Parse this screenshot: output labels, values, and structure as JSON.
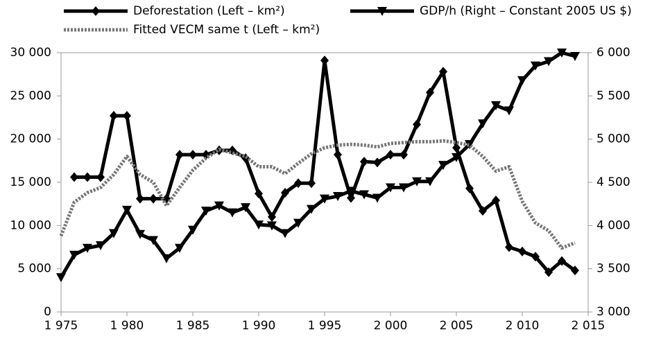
{
  "chart_data": {
    "type": "line",
    "x": [
      1975,
      1976,
      1977,
      1978,
      1979,
      1980,
      1981,
      1982,
      1983,
      1984,
      1985,
      1986,
      1987,
      1988,
      1989,
      1990,
      1991,
      1992,
      1993,
      1994,
      1995,
      1996,
      1997,
      1998,
      1999,
      2000,
      2001,
      2002,
      2003,
      2004,
      2005,
      2006,
      2007,
      2008,
      2009,
      2010,
      2011,
      2012,
      2013,
      2014
    ],
    "series": [
      {
        "name": "Deforestation (Left – km²)",
        "color": "#000000",
        "line_style": "solid",
        "marker": "diamond",
        "values": [
          null,
          15600,
          15600,
          15600,
          22700,
          22700,
          13100,
          13100,
          13100,
          18200,
          18200,
          18200,
          18700,
          18700,
          17800,
          13700,
          11000,
          13800,
          14900,
          14900,
          29100,
          18200,
          13200,
          17400,
          17300,
          18200,
          18200,
          21700,
          25400,
          27800,
          19000,
          14300,
          11700,
          12900,
          7500,
          7000,
          6400,
          4600,
          5900,
          4800
        ]
      },
      {
        "name": "GDP/h (Right – Constant 2005 US $)",
        "color": "#000000",
        "line_style": "solid",
        "marker": "triangle-down",
        "axis": "y2",
        "values": [
          3400,
          3660,
          3740,
          3770,
          3910,
          4180,
          3900,
          3830,
          3620,
          3740,
          3950,
          4170,
          4230,
          4150,
          4210,
          4010,
          4000,
          3910,
          4030,
          4190,
          4310,
          4340,
          4400,
          4360,
          4320,
          4440,
          4440,
          4510,
          4510,
          4700,
          4790,
          4940,
          5180,
          5390,
          5330,
          5680,
          5850,
          5900,
          6000,
          5960
        ]
      },
      {
        "name": "Fitted VECM same t (Left – km²)",
        "color": "#777777",
        "line_style": "dotted",
        "marker": "none",
        "values": [
          8800,
          12700,
          13800,
          14400,
          15900,
          18000,
          15900,
          15000,
          12300,
          14400,
          16400,
          17800,
          18800,
          18400,
          18000,
          16800,
          16800,
          16000,
          17200,
          18300,
          19000,
          19300,
          19400,
          19300,
          19100,
          19500,
          19600,
          19700,
          19700,
          19800,
          19600,
          19300,
          18000,
          16300,
          16800,
          12800,
          10300,
          9400,
          7400,
          8000
        ]
      }
    ],
    "xlim": [
      1975,
      2015
    ],
    "xticks": [
      {
        "value": 1975,
        "label": "1 975"
      },
      {
        "value": 1980,
        "label": "1 980"
      },
      {
        "value": 1985,
        "label": "1 985"
      },
      {
        "value": 1990,
        "label": "1 990"
      },
      {
        "value": 1995,
        "label": "1 995"
      },
      {
        "value": 2000,
        "label": "2 000"
      },
      {
        "value": 2005,
        "label": "2 005"
      },
      {
        "value": 2010,
        "label": "2 010"
      },
      {
        "value": 2015,
        "label": "2 015"
      }
    ],
    "ylim": [
      0,
      30000
    ],
    "yticks": [
      0,
      {
        "value": 5000,
        "label": "5 000"
      },
      {
        "value": 10000,
        "label": "10 000"
      },
      {
        "value": 15000,
        "label": "15 000"
      },
      {
        "value": 20000,
        "label": "20 000"
      },
      {
        "value": 25000,
        "label": "25 000"
      },
      {
        "value": 30000,
        "label": "30 000"
      }
    ],
    "y2lim": [
      3000,
      6000
    ],
    "y2ticks": [
      {
        "value": 3000,
        "label": "3 000"
      },
      {
        "value": 3500,
        "label": "3 500"
      },
      {
        "value": 4000,
        "label": "4 000"
      },
      {
        "value": 4500,
        "label": "4 500"
      },
      {
        "value": 5000,
        "label": "5 000"
      },
      {
        "value": 5500,
        "label": "5 500"
      },
      {
        "value": 6000,
        "label": "6 000"
      }
    ],
    "grid": false
  }
}
